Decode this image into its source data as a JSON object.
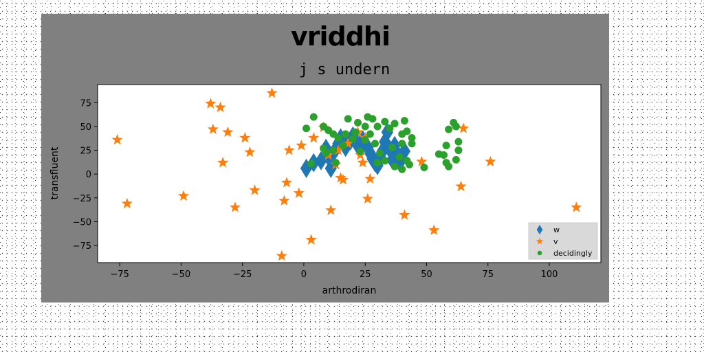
{
  "brand": "vriddhi",
  "chart_data": {
    "type": "scatter",
    "title": "j s undern",
    "xlabel": "arthrodiran",
    "ylabel": "transfluent",
    "xlim": [
      -84,
      121
    ],
    "ylim": [
      -93,
      94
    ],
    "xticks": [
      -75,
      -50,
      -25,
      0,
      25,
      50,
      75,
      100
    ],
    "yticks": [
      -75,
      -50,
      -25,
      0,
      25,
      50,
      75
    ],
    "grid": false,
    "legend_position": "lower-right",
    "series": [
      {
        "name": "w",
        "marker": "diamond",
        "color": "#1f77b4",
        "points": [
          [
            1,
            6
          ],
          [
            4,
            12
          ],
          [
            7,
            14
          ],
          [
            9,
            27
          ],
          [
            10,
            18
          ],
          [
            11,
            6
          ],
          [
            12,
            22
          ],
          [
            14,
            32
          ],
          [
            15,
            38
          ],
          [
            17,
            28
          ],
          [
            19,
            35
          ],
          [
            20,
            40
          ],
          [
            22,
            30
          ],
          [
            24,
            36
          ],
          [
            26,
            28
          ],
          [
            27,
            22
          ],
          [
            28,
            16
          ],
          [
            29,
            12
          ],
          [
            30,
            9
          ],
          [
            31,
            18
          ],
          [
            32,
            24
          ],
          [
            33,
            34
          ],
          [
            34,
            44
          ],
          [
            35,
            26
          ],
          [
            36,
            15
          ],
          [
            37,
            30
          ],
          [
            38,
            22
          ],
          [
            39,
            12
          ],
          [
            40,
            20
          ],
          [
            41,
            24
          ]
        ]
      },
      {
        "name": "v",
        "marker": "star",
        "color": "#ff7f0e",
        "points": [
          [
            -76,
            36
          ],
          [
            -72,
            -31
          ],
          [
            -49,
            -23
          ],
          [
            -38,
            74
          ],
          [
            -37,
            47
          ],
          [
            -34,
            70
          ],
          [
            -33,
            12
          ],
          [
            -31,
            44
          ],
          [
            -28,
            -35
          ],
          [
            -24,
            38
          ],
          [
            -22,
            23
          ],
          [
            -20,
            -17
          ],
          [
            -13,
            85
          ],
          [
            -9,
            -86
          ],
          [
            -8,
            -28
          ],
          [
            -7,
            -9
          ],
          [
            -6,
            25
          ],
          [
            -2,
            -20
          ],
          [
            -1,
            30
          ],
          [
            3,
            -69
          ],
          [
            4,
            38
          ],
          [
            8,
            49
          ],
          [
            10,
            20
          ],
          [
            11,
            -38
          ],
          [
            13,
            10
          ],
          [
            14,
            25
          ],
          [
            15,
            -4
          ],
          [
            16,
            -6
          ],
          [
            18,
            32
          ],
          [
            22,
            44
          ],
          [
            23,
            20
          ],
          [
            24,
            12
          ],
          [
            25,
            38
          ],
          [
            26,
            -26
          ],
          [
            27,
            -5
          ],
          [
            41,
            -43
          ],
          [
            48,
            13
          ],
          [
            53,
            -59
          ],
          [
            64,
            -13
          ],
          [
            65,
            48
          ],
          [
            76,
            13
          ],
          [
            111,
            -35
          ]
        ]
      },
      {
        "name": "decidingly",
        "marker": "circle",
        "color": "#2ca02c",
        "points": [
          [
            1,
            48
          ],
          [
            3,
            11
          ],
          [
            4,
            60
          ],
          [
            8,
            50
          ],
          [
            8,
            27
          ],
          [
            9,
            22
          ],
          [
            10,
            46
          ],
          [
            12,
            42
          ],
          [
            12,
            25
          ],
          [
            13,
            12
          ],
          [
            14,
            38
          ],
          [
            16,
            30
          ],
          [
            17,
            42
          ],
          [
            18,
            58
          ],
          [
            20,
            37
          ],
          [
            21,
            44
          ],
          [
            22,
            54
          ],
          [
            23,
            24
          ],
          [
            25,
            50
          ],
          [
            25,
            36
          ],
          [
            26,
            60
          ],
          [
            27,
            42
          ],
          [
            28,
            58
          ],
          [
            29,
            32
          ],
          [
            30,
            50
          ],
          [
            30,
            12
          ],
          [
            31,
            22
          ],
          [
            33,
            55
          ],
          [
            33,
            14
          ],
          [
            35,
            48
          ],
          [
            36,
            28
          ],
          [
            37,
            53
          ],
          [
            37,
            8
          ],
          [
            39,
            18
          ],
          [
            40,
            42
          ],
          [
            40,
            32
          ],
          [
            40,
            5
          ],
          [
            41,
            56
          ],
          [
            42,
            45
          ],
          [
            42,
            14
          ],
          [
            43,
            10
          ],
          [
            44,
            38
          ],
          [
            44,
            32
          ],
          [
            49,
            7
          ],
          [
            55,
            21
          ],
          [
            57,
            20
          ],
          [
            58,
            30
          ],
          [
            58,
            12
          ],
          [
            59,
            47
          ],
          [
            59,
            8
          ],
          [
            61,
            54
          ],
          [
            62,
            15
          ],
          [
            63,
            34
          ],
          [
            63,
            25
          ],
          [
            62,
            50
          ]
        ]
      }
    ]
  }
}
